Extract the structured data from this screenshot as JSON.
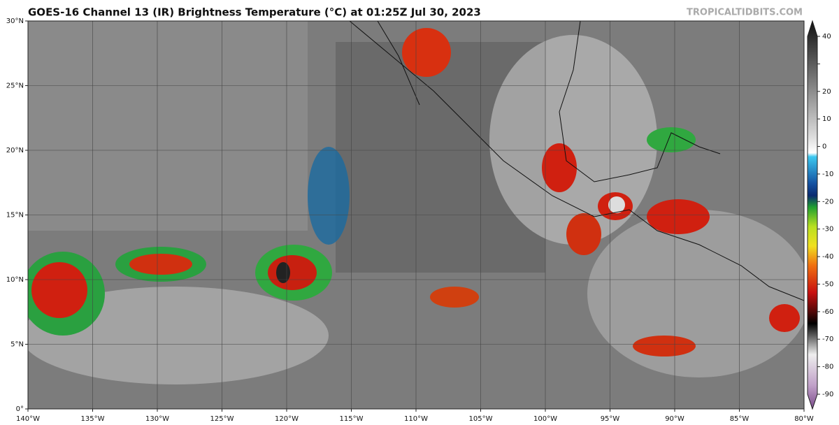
{
  "header": {
    "title": "GOES-16 Channel 13 (IR) Brightness Temperature (°C) at 01:25Z Jul 30, 2023",
    "source": "TROPICALTIDBITS.COM"
  },
  "map": {
    "lon_ticks": [
      {
        "value": -140,
        "label": "140°W"
      },
      {
        "value": -135,
        "label": "135°W"
      },
      {
        "value": -130,
        "label": "130°W"
      },
      {
        "value": -125,
        "label": "125°W"
      },
      {
        "value": -120,
        "label": "120°W"
      },
      {
        "value": -115,
        "label": "115°W"
      },
      {
        "value": -110,
        "label": "110°W"
      },
      {
        "value": -105,
        "label": "105°W"
      },
      {
        "value": -100,
        "label": "100°W"
      },
      {
        "value": -95,
        "label": "95°W"
      },
      {
        "value": -90,
        "label": "90°W"
      },
      {
        "value": -85,
        "label": "85°W"
      },
      {
        "value": -80,
        "label": "80°W"
      }
    ],
    "lat_ticks": [
      {
        "value": 0,
        "label": "0°"
      },
      {
        "value": 5,
        "label": "5°N"
      },
      {
        "value": 10,
        "label": "10°N"
      },
      {
        "value": 15,
        "label": "15°N"
      },
      {
        "value": 20,
        "label": "20°N"
      },
      {
        "value": 25,
        "label": "25°N"
      },
      {
        "value": 30,
        "label": "30°N"
      }
    ]
  },
  "colorbar": {
    "ticks": [
      40,
      30,
      20,
      10,
      0,
      -10,
      -20,
      -30,
      -40,
      -50,
      -60,
      -70,
      -80,
      -90
    ]
  }
}
